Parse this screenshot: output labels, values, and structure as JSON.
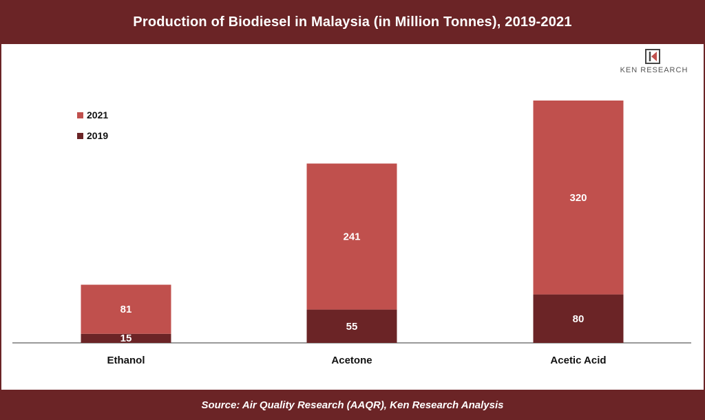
{
  "header": {
    "title": "Production of Biodiesel in Malaysia (in Million Tonnes), 2019-2021"
  },
  "footer": {
    "source": "Source: Air Quality Research (AAQR), Ken Research Analysis"
  },
  "logo": {
    "text": "KEN RESEARCH",
    "icon": "ken-research-logo-icon"
  },
  "colors": {
    "s2019": "#6b2426",
    "s2021": "#c0504d",
    "brand": "#6b2426"
  },
  "chart_data": {
    "type": "bar",
    "stacked": true,
    "categories": [
      "Ethanol",
      "Acetone",
      "Acetic Acid"
    ],
    "series": [
      {
        "name": "2019",
        "values": [
          15,
          55,
          80
        ]
      },
      {
        "name": "2021",
        "values": [
          81,
          241,
          320
        ]
      }
    ],
    "legend": {
      "placement": "top-left",
      "order": [
        "2021",
        "2019"
      ]
    },
    "ylim": [
      0,
      400
    ],
    "grid": false
  }
}
